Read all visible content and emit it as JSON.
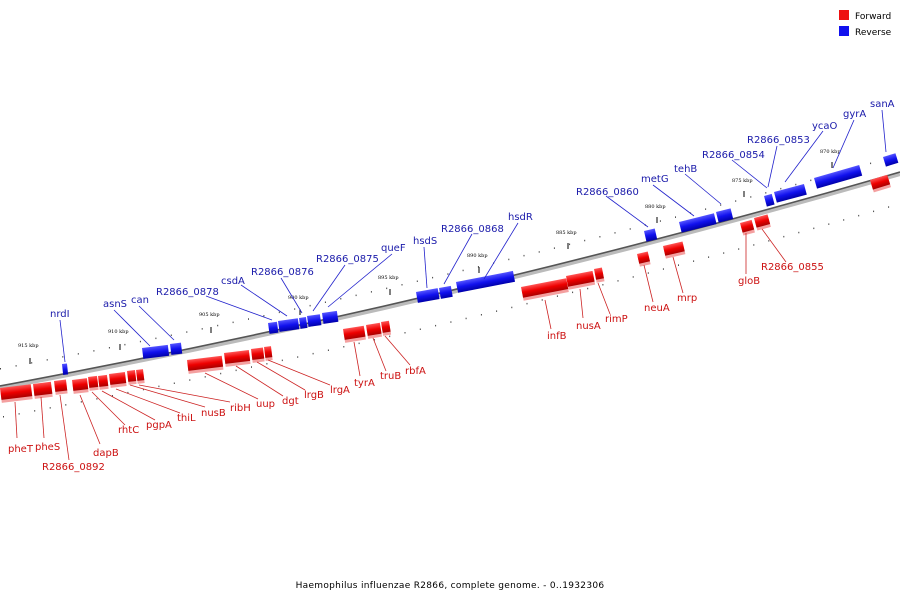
{
  "legend": {
    "forward_label": "Forward",
    "reverse_label": "Reverse",
    "forward_color": "#ee1111",
    "reverse_color": "#1111ee"
  },
  "caption": "Haemophilus influenzae R2866, complete genome. - 0..1932306",
  "ticks": [
    "915 kbp",
    "910 kbp",
    "905 kbp",
    "900 kbp",
    "895 kbp",
    "890 kbp",
    "885 kbp",
    "880 kbp",
    "875 kbp",
    "870 kbp"
  ],
  "forward_genes": [
    {
      "name": "pheT"
    },
    {
      "name": "pheS"
    },
    {
      "name": "R2866_0892"
    },
    {
      "name": "dapB"
    },
    {
      "name": "rhtC"
    },
    {
      "name": "pgpA"
    },
    {
      "name": "thiL"
    },
    {
      "name": "nusB"
    },
    {
      "name": "ribH"
    },
    {
      "name": "uup"
    },
    {
      "name": "dgt"
    },
    {
      "name": "lrgB"
    },
    {
      "name": "lrgA"
    },
    {
      "name": "tyrA"
    },
    {
      "name": "truB"
    },
    {
      "name": "rbfA"
    },
    {
      "name": "infB"
    },
    {
      "name": "nusA"
    },
    {
      "name": "rimP"
    },
    {
      "name": "neuA"
    },
    {
      "name": "mrp"
    },
    {
      "name": "gloB"
    },
    {
      "name": "R2866_0855"
    }
  ],
  "reverse_genes": [
    {
      "name": "nrdI"
    },
    {
      "name": "asnS"
    },
    {
      "name": "can"
    },
    {
      "name": "R2866_0878"
    },
    {
      "name": "csdA"
    },
    {
      "name": "R2866_0876"
    },
    {
      "name": "R2866_0875"
    },
    {
      "name": "queF"
    },
    {
      "name": "hsdS"
    },
    {
      "name": "R2866_0868"
    },
    {
      "name": "hsdR"
    },
    {
      "name": "R2866_0860"
    },
    {
      "name": "metG"
    },
    {
      "name": "tehB"
    },
    {
      "name": "R2866_0854"
    },
    {
      "name": "R2866_0853"
    },
    {
      "name": "ycaO"
    },
    {
      "name": "gyrA"
    },
    {
      "name": "sanA"
    }
  ]
}
